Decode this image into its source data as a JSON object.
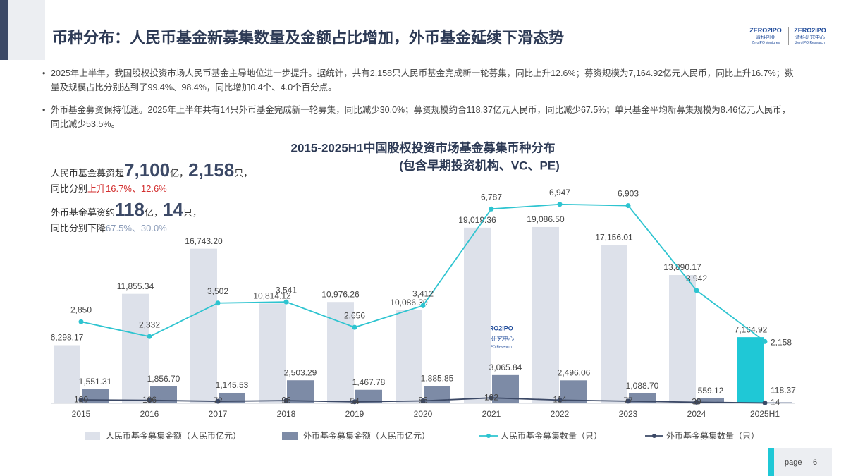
{
  "title": "币种分布：人民币基金新募集数量及金额占比增加，外币基金延续下滑态势",
  "logos": [
    {
      "brand": "ZERO2IPO",
      "name": "清科创业",
      "en": "ZeroIPO Ventures"
    },
    {
      "brand": "ZERO2IPO",
      "name": "清科研究中心",
      "en": "ZeroIPO Research"
    }
  ],
  "bullets": [
    "2025年上半年，我国股权投资市场人民币基金主导地位进一步提升。据统计，共有2,158只人民币基金完成新一轮募集，同比上升12.6%；募资规模为7,164.92亿元人民币，同比上升16.7%；数量及规模占比分别达到了99.4%、98.4%，同比增加0.4个、4.0个百分点。",
    "外币基金募资保持低迷。2025年上半年共有14只外币基金完成新一轮募集，同比减少30.0%；募资规模约合118.37亿元人民币，同比减少67.5%；单只基金平均新募集规模为8.46亿元人民币，同比减少53.5%。"
  ],
  "callouts": [
    {
      "parts": [
        "人民币基金募资超",
        "7,100",
        "亿，",
        "2,158",
        "只，"
      ],
      "sub": [
        "同比分别",
        "上升16.7%、12.6%"
      ]
    },
    {
      "parts": [
        "外币基金募资约",
        "118",
        "亿，",
        "14",
        "只，"
      ],
      "sub": [
        "同比分别下降",
        "67.5%、30.0%"
      ]
    }
  ],
  "page": {
    "label": "page",
    "number": 6
  },
  "chart_data": {
    "type": "bar-line",
    "title": "2015-2025H1中国股权投资市场基金募集币种分布",
    "subtitle": "(包含早期投资机构、VC、PE)",
    "watermark": {
      "brand": "ZERO2IPO",
      "name": "清科研究中心",
      "en": "ZeroIPO Research"
    },
    "categories": [
      "2015",
      "2016",
      "2017",
      "2018",
      "2019",
      "2020",
      "2021",
      "2022",
      "2023",
      "2024",
      "2025H1"
    ],
    "ylim": [
      0,
      20000
    ],
    "y2lim": [
      0,
      8000
    ],
    "series": [
      {
        "name": "人民币基金募集金额（人民币亿元）",
        "type": "bar",
        "color": "#dde1ea",
        "colors": [
          "#dde1ea",
          "#dde1ea",
          "#dde1ea",
          "#dde1ea",
          "#dde1ea",
          "#dde1ea",
          "#dde1ea",
          "#dde1ea",
          "#dde1ea",
          "#dde1ea",
          "#1fc8d6"
        ],
        "values": [
          6298.17,
          11855.34,
          16743.2,
          10814.12,
          10976.26,
          10086.3,
          19019.36,
          19086.5,
          17156.01,
          13890.17,
          7164.92
        ],
        "value_labels": [
          "6,298.17",
          "11,855.34",
          "16,743.20",
          "10,814.12",
          "10,976.26",
          "10,086.30",
          "19,019.36",
          "19,086.50",
          "17,156.01",
          "13,890.17",
          "7,164.92"
        ]
      },
      {
        "name": "外币基金募集金额（人民币亿元）",
        "type": "bar",
        "color": "#7d8ba6",
        "values": [
          1551.31,
          1856.7,
          1145.53,
          2503.29,
          1467.78,
          1885.85,
          3065.84,
          2496.06,
          1088.7,
          559.12,
          118.37
        ],
        "value_labels": [
          "1,551.31",
          "1,856.70",
          "1,145.53",
          "2,503.29",
          "1,467.78",
          "1,885.85",
          "3,065.84",
          "2,496.06",
          "1,088.70",
          "559.12",
          "118.37"
        ]
      },
      {
        "name": "人民币基金募集数量（只）",
        "type": "line",
        "axis": "y2",
        "color": "#2ec4d0",
        "values": [
          2850,
          2332,
          3502,
          3541,
          2656,
          3412,
          6787,
          6947,
          6903,
          3942,
          2158
        ],
        "value_labels": [
          "2,850",
          "2,332",
          "3,502",
          "3,541",
          "2,656",
          "3,412",
          "6,787",
          "6,947",
          "6,903",
          "3,942",
          "2,158"
        ]
      },
      {
        "name": "外币基金募集数量（只）",
        "type": "line",
        "axis": "y2",
        "color": "#3c4966",
        "values": [
          120,
          106,
          72,
          96,
          54,
          86,
          192,
          114,
          77,
          39,
          14
        ]
      }
    ]
  }
}
